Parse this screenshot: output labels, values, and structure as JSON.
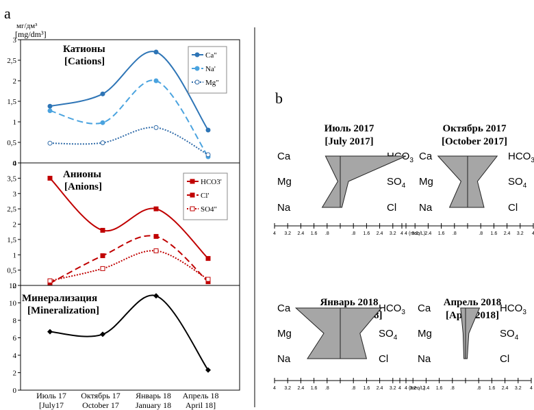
{
  "panel_a": {
    "label": "a",
    "unit_ru": "мг/дм³",
    "unit_en": "[mg/dm³]",
    "x_labels": [
      {
        "ru": "Июль 17",
        "en": "[July17"
      },
      {
        "ru": "Октябрь 17",
        "en": "October 17"
      },
      {
        "ru": "Январь 18",
        "en": "January 18"
      },
      {
        "ru": "Апрель 18",
        "en": "April 18]"
      }
    ]
  },
  "panel_b": {
    "label": "b",
    "scale_ticks": [
      "4",
      "3.2",
      "2.4",
      "1.6",
      ".8",
      ".8",
      "1.6",
      "2.4",
      "3.2",
      "4"
    ],
    "scale_unit": "(meq/L)",
    "left_ions": [
      "Ca",
      "Mg",
      "Na"
    ],
    "right_ions": [
      "HCO3",
      "SO4",
      "Cl"
    ]
  },
  "chart_data": [
    {
      "type": "line",
      "title": "Катионы",
      "subtitle": "[Cations]",
      "categories": [
        "Июль 17",
        "Октябрь 17",
        "Январь 18",
        "Апрель 18"
      ],
      "ylim": [
        0,
        3
      ],
      "yticks": [
        "0",
        "0,5",
        "1",
        "1,5",
        "2",
        "2,5",
        "3"
      ],
      "legend_position": "top-right",
      "series": [
        {
          "name": "Ca\"",
          "values": [
            1.38,
            1.68,
            2.7,
            0.8
          ],
          "color": "#2e75b6",
          "style": "solid"
        },
        {
          "name": "Na'",
          "values": [
            1.27,
            0.98,
            2.0,
            0.15
          ],
          "color": "#4aa3df",
          "style": "dashed"
        },
        {
          "name": "Mg\"",
          "values": [
            0.48,
            0.49,
            0.86,
            0.2
          ],
          "color": "#2e6aa8",
          "style": "dotted"
        }
      ]
    },
    {
      "type": "line",
      "title": "Анионы",
      "subtitle": "[Anions]",
      "categories": [
        "Июль 17",
        "Октябрь 17",
        "Январь 18",
        "Апрель 18"
      ],
      "ylim": [
        0,
        4
      ],
      "yticks": [
        "0",
        "0,5",
        "1",
        "1,5",
        "2",
        "2,5",
        "3",
        "3,5",
        "4"
      ],
      "legend_position": "top-right",
      "series": [
        {
          "name": "HCO3'",
          "values": [
            3.5,
            1.8,
            2.5,
            0.88
          ],
          "color": "#c00000",
          "style": "solid"
        },
        {
          "name": "Cl'",
          "values": [
            0.07,
            0.97,
            1.6,
            0.12
          ],
          "color": "#c00000",
          "style": "dashed"
        },
        {
          "name": "SO4\"",
          "values": [
            0.15,
            0.55,
            1.13,
            0.2
          ],
          "color": "#c00000",
          "style": "dotted"
        }
      ]
    },
    {
      "type": "line",
      "title": "Минерализация",
      "subtitle": "[Mineralization]",
      "categories": [
        "Июль 17",
        "Октябрь 17",
        "Январь 18",
        "Апрель 18"
      ],
      "ylim": [
        0,
        12
      ],
      "yticks": [
        "0",
        "2",
        "4",
        "6",
        "8",
        "10",
        "12"
      ],
      "series": [
        {
          "values": [
            6.7,
            6.4,
            10.8,
            2.3
          ],
          "color": "#000000",
          "style": "solid"
        }
      ]
    },
    {
      "type": "stiff",
      "title": "Июль 2017",
      "subtitle": "[July 2017]",
      "left": {
        "Ca": 0.9,
        "Mg": 0.15,
        "Na": 1.1
      },
      "right": {
        "HCO3": 4.0,
        "SO4": 0.5,
        "Cl": 0.1
      }
    },
    {
      "type": "stiff",
      "title": "Октябрь 2017",
      "subtitle": "[October 2017]",
      "left": {
        "Ca": 1.8,
        "Mg": 0.4,
        "Na": 1.1
      },
      "right": {
        "HCO3": 1.8,
        "SO4": 0.6,
        "Cl": 1.0
      }
    },
    {
      "type": "stiff",
      "title": "Январь 2018",
      "subtitle": "[January 2018]",
      "left": {
        "Ca": 2.7,
        "Mg": 1.0,
        "Na": 2.0
      },
      "right": {
        "HCO3": 2.5,
        "SO4": 1.2,
        "Cl": 1.6
      }
    },
    {
      "type": "stiff",
      "title": "Апрель 2018",
      "subtitle": "[April 2018]",
      "left": {
        "Ca": 0.3,
        "Mg": 0.15,
        "Na": 0.1
      },
      "right": {
        "HCO3": 0.85,
        "SO4": 0.2,
        "Cl": 0.1
      }
    }
  ]
}
